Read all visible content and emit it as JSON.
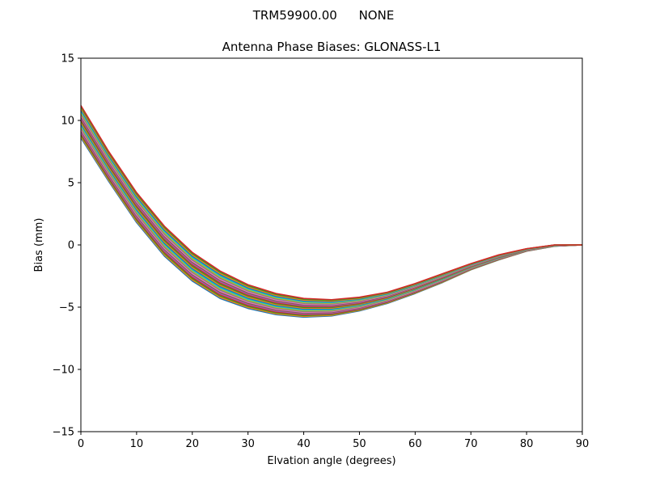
{
  "chart_data": {
    "type": "line",
    "suptitle": {
      "antenna": "TRM59900.00",
      "radome": "NONE"
    },
    "title": "Antenna Phase Biases: GLONASS-L1",
    "xlabel": "Elvation angle (degrees)",
    "ylabel": "Bias (mm)",
    "xlim": [
      0,
      90
    ],
    "ylim": [
      -15,
      15
    ],
    "xticks": [
      0,
      10,
      20,
      30,
      40,
      50,
      60,
      70,
      80,
      90
    ],
    "yticks": [
      -15,
      -10,
      -5,
      0,
      5,
      10,
      15
    ],
    "grid": false,
    "x": [
      0,
      5,
      10,
      15,
      20,
      25,
      30,
      35,
      40,
      45,
      50,
      55,
      60,
      65,
      70,
      75,
      80,
      85,
      90
    ],
    "envelope": {
      "upper": [
        11.2,
        7.5,
        4.2,
        1.5,
        -0.6,
        -2.1,
        -3.2,
        -3.9,
        -4.3,
        -4.4,
        -4.2,
        -3.8,
        -3.1,
        -2.3,
        -1.5,
        -0.8,
        -0.3,
        0.0,
        0.0
      ],
      "lower": [
        8.6,
        5.1,
        1.8,
        -0.9,
        -2.9,
        -4.3,
        -5.1,
        -5.6,
        -5.8,
        -5.7,
        -5.3,
        -4.7,
        -3.9,
        -3.0,
        -2.0,
        -1.2,
        -0.5,
        -0.1,
        0.0
      ]
    },
    "series_count": 24,
    "palette": [
      "#1f77b4",
      "#ff7f0e",
      "#2ca02c",
      "#d62728",
      "#9467bd",
      "#8c564b",
      "#e377c2",
      "#7f7f7f",
      "#bcbd22",
      "#17becf"
    ]
  }
}
